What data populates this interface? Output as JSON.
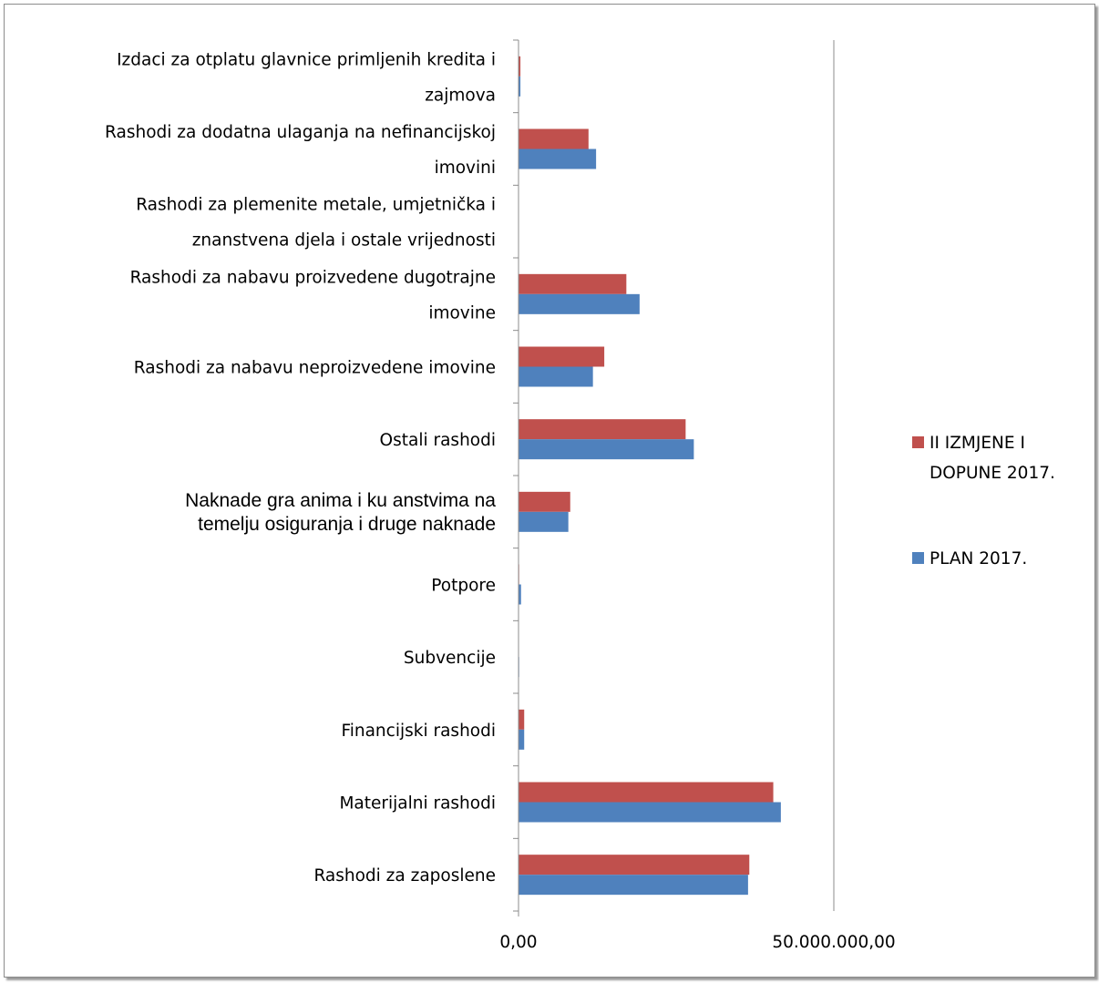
{
  "chart_data": {
    "type": "bar",
    "orientation": "horizontal",
    "categories": [
      "Rashodi za zaposlene",
      "Materijalni rashodi",
      "Financijski rashodi",
      "Subvencije",
      "Potpore",
      "Naknade gra anima i ku anstvima na temelju osiguranja i druge naknade",
      "Ostali rashodi",
      "Rashodi za nabavu neproizvedene imovine",
      "Rashodi za nabavu proizvedene dugotrajne imovine",
      "Rashodi za plemenite metale, umjetnička i znanstvena djela i ostale vrijednosti",
      "Rashodi za dodatna ulaganja na nefinancijskoj imovini",
      "Izdaci za otplatu glavnice primljenih kredita i zajmova"
    ],
    "category_lines": [
      [
        "Rashodi za zaposlene"
      ],
      [
        "Materijalni rashodi"
      ],
      [
        "Financijski rashodi"
      ],
      [
        "Subvencije"
      ],
      [
        "Potpore"
      ],
      [
        "Naknade gra  anima i ku  anstvima na",
        "temelju osiguranja i druge naknade"
      ],
      [
        "Ostali rashodi"
      ],
      [
        "Rashodi za nabavu neproizvedene imovine"
      ],
      [
        "Rashodi za nabavu proizvedene dugotrajne",
        "imovine"
      ],
      [
        "Rashodi za plemenite metale, umjetnička i",
        "znanstvena djela i ostale vrijednosti"
      ],
      [
        "Rashodi za dodatna ulaganja na nefinancijskoj",
        "imovini"
      ],
      [
        "Izdaci za otplatu glavnice primljenih kredita i",
        "zajmova"
      ]
    ],
    "series": [
      {
        "name": "PLAN 2017.",
        "color": "#4f81bd",
        "values": [
          36400000,
          41600000,
          900000,
          100000,
          400000,
          7900000,
          27800000,
          11800000,
          19200000,
          0,
          12300000,
          300000
        ]
      },
      {
        "name": "II IZMJENE I DOPUNE 2017.",
        "color": "#c0504d",
        "values": [
          36600000,
          40400000,
          900000,
          50000,
          100000,
          8200000,
          26500000,
          13600000,
          17100000,
          0,
          11100000,
          300000
        ]
      }
    ],
    "xlim": [
      0,
      50000000
    ],
    "ticks": [
      {
        "value": 0,
        "label": "0,00"
      },
      {
        "value": 50000000,
        "label": "50.000.000,00"
      }
    ],
    "grid": "vertical major gridline at 50.000.000,00",
    "legend_position": "right"
  }
}
